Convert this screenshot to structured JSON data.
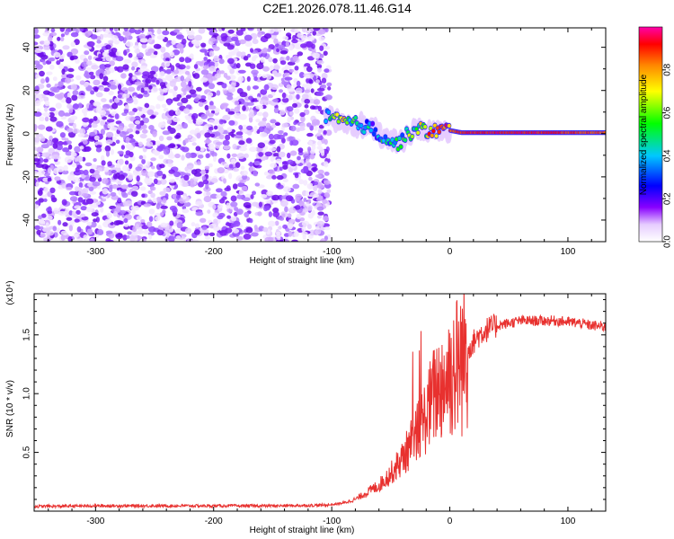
{
  "title": "C2E1.2026.078.11.46.G14",
  "chart_data": [
    {
      "type": "heatmap",
      "title": "C2E1.2026.078.11.46.G14",
      "xlabel": "Height of straight line (km)",
      "ylabel": "Frequency (Hz)",
      "xlim": [
        -352,
        132
      ],
      "ylim": [
        -50,
        49
      ],
      "xticks": [
        -300,
        -200,
        -100,
        0,
        100
      ],
      "yticks": [
        -40,
        -20,
        0,
        20,
        40
      ],
      "colorbar": {
        "label": "Normalized spectral amplitude",
        "range": [
          0,
          1
        ],
        "ticks": [
          "0.0",
          "0.2",
          "0.4",
          "0.6",
          "0.8"
        ],
        "tick_values": [
          0.0,
          0.2,
          0.4,
          0.6,
          0.8
        ]
      },
      "noise_region_x": [
        -352,
        -102
      ],
      "signal_track": [
        {
          "x": -105,
          "f": 8,
          "amp": 0.35
        },
        {
          "x": -95,
          "f": 6,
          "amp": 0.8
        },
        {
          "x": -85,
          "f": 5,
          "amp": 0.55
        },
        {
          "x": -75,
          "f": 4,
          "amp": 0.45
        },
        {
          "x": -65,
          "f": 2,
          "amp": 0.35
        },
        {
          "x": -55,
          "f": -2,
          "amp": 0.45
        },
        {
          "x": -45,
          "f": -5,
          "amp": 0.4
        },
        {
          "x": -35,
          "f": 0,
          "amp": 0.5
        },
        {
          "x": -25,
          "f": 2,
          "amp": 0.6
        },
        {
          "x": -15,
          "f": 1,
          "amp": 0.8
        },
        {
          "x": -5,
          "f": 2,
          "amp": 0.85
        },
        {
          "x": 10,
          "f": 0.5,
          "amp": 0.9
        },
        {
          "x": 50,
          "f": 0.5,
          "amp": 0.92
        },
        {
          "x": 90,
          "f": 0.5,
          "amp": 0.9
        },
        {
          "x": 132,
          "f": 0.5,
          "amp": 0.85
        }
      ]
    },
    {
      "type": "line",
      "xlabel": "Height of straight line (km)",
      "ylabel": "SNR (10 * v/v)",
      "yscale_label": "(x10⁴)",
      "xlim": [
        -352,
        132
      ],
      "ylim": [
        0,
        1.85
      ],
      "xticks": [
        -300,
        -200,
        -100,
        0,
        100
      ],
      "yticks": [
        0.5,
        1.0,
        1.5
      ],
      "ytick_labels": [
        "0.5",
        "1.0",
        "1.5"
      ],
      "series": [
        {
          "name": "SNR",
          "color": "#e8312f",
          "points": [
            [
              -352,
              0.04
            ],
            [
              -300,
              0.045
            ],
            [
              -250,
              0.045
            ],
            [
              -200,
              0.045
            ],
            [
              -150,
              0.045
            ],
            [
              -110,
              0.05
            ],
            [
              -100,
              0.055
            ],
            [
              -90,
              0.07
            ],
            [
              -80,
              0.1
            ],
            [
              -70,
              0.16
            ],
            [
              -60,
              0.22
            ],
            [
              -50,
              0.32
            ],
            [
              -40,
              0.45
            ],
            [
              -30,
              0.62
            ],
            [
              -20,
              0.82
            ],
            [
              -15,
              0.95
            ],
            [
              -10,
              1.05
            ],
            [
              -5,
              1.1
            ],
            [
              0,
              1.18
            ],
            [
              5,
              1.22
            ],
            [
              10,
              1.3
            ],
            [
              15,
              1.38
            ],
            [
              20,
              1.44
            ],
            [
              25,
              1.5
            ],
            [
              30,
              1.54
            ],
            [
              40,
              1.58
            ],
            [
              50,
              1.6
            ],
            [
              60,
              1.62
            ],
            [
              70,
              1.62
            ],
            [
              80,
              1.62
            ],
            [
              90,
              1.62
            ],
            [
              100,
              1.61
            ],
            [
              110,
              1.6
            ],
            [
              120,
              1.58
            ],
            [
              132,
              1.57
            ]
          ]
        }
      ]
    }
  ]
}
